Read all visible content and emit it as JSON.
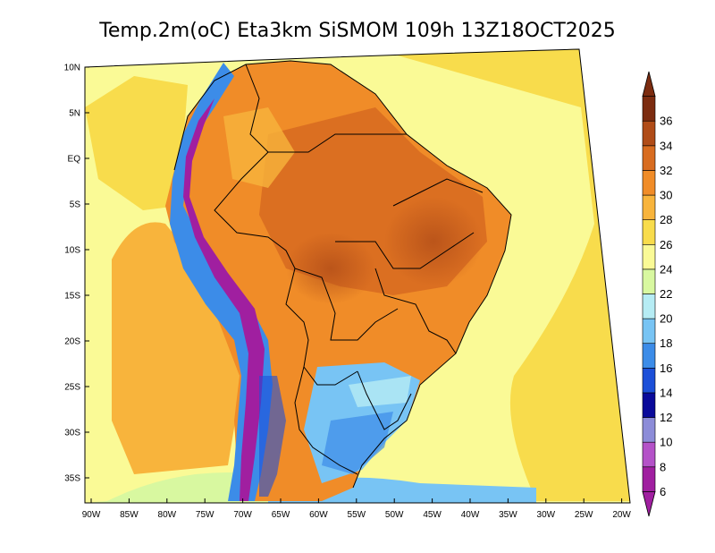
{
  "title": "Temp.2m(oC) Eta3km SiSMOM 109h 13Z18OCT2025",
  "variable": "Temp.2m",
  "units": "oC",
  "lat_labels": [
    "10N",
    "5N",
    "EQ",
    "5S",
    "10S",
    "15S",
    "20S",
    "25S",
    "30S",
    "35S"
  ],
  "lon_labels": [
    "90W",
    "85W",
    "80W",
    "75W",
    "70W",
    "65W",
    "60W",
    "55W",
    "50W",
    "45W",
    "40W",
    "35W",
    "30W",
    "25W",
    "20W"
  ],
  "colorbar": {
    "labels": [
      "6",
      "8",
      "10",
      "12",
      "14",
      "16",
      "18",
      "20",
      "22",
      "24",
      "26",
      "28",
      "30",
      "32",
      "34",
      "36"
    ],
    "colors": [
      "#a01fa0",
      "#b452c8",
      "#8c8cd8",
      "#0a0a9a",
      "#1c4fd8",
      "#3c8ce8",
      "#78c4f4",
      "#b6ecf4",
      "#d8f8a0",
      "#fafa96",
      "#f8dc4c",
      "#f8b43c",
      "#f08c28",
      "#d86c20",
      "#b04c18",
      "#7c2c10"
    ]
  },
  "colors": {
    "ocean_warm": "#f8dc4c",
    "ocean_mild": "#fafa96",
    "ocean_hot": "#f8b43c",
    "land_hot": "#f08c28",
    "land_very_hot": "#d86c20",
    "andes_cold": "#a01fa0",
    "andes_cool": "#3c8ce8",
    "south_cool": "#78c4f4",
    "border": "#000000"
  }
}
